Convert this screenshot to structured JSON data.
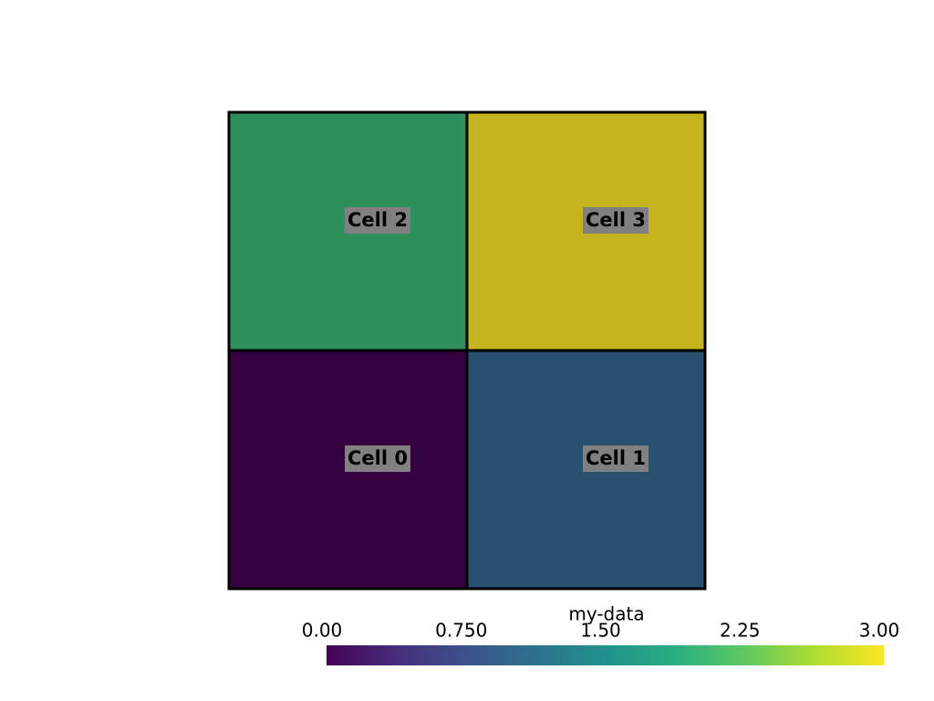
{
  "chart_data": {
    "type": "heatmap",
    "colormap": "viridis",
    "cells": [
      "Cell 0",
      "Cell 1",
      "Cell 2",
      "Cell 3"
    ],
    "values": [
      0,
      1,
      2,
      3
    ],
    "colorbar_title": "my-data",
    "clim": [
      0,
      3
    ],
    "ticks": [
      {
        "value": 0,
        "label": "0.00"
      },
      {
        "value": 0.75,
        "label": "0.750"
      },
      {
        "value": 1.5,
        "label": "1.50"
      },
      {
        "value": 2.25,
        "label": "2.25"
      },
      {
        "value": 3,
        "label": "3.00"
      }
    ]
  }
}
